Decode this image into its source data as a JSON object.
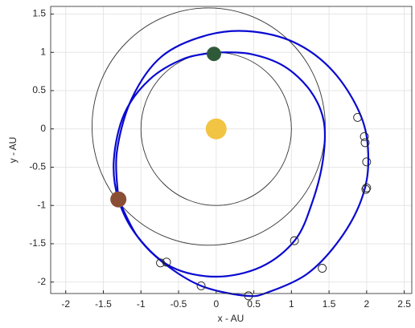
{
  "chart_data": {
    "type": "line",
    "xlabel": "x - AU",
    "ylabel": "y - AU",
    "xlim": [
      -2.2,
      2.6
    ],
    "ylim": [
      -2.15,
      1.6
    ],
    "xticks": [
      -2,
      -1.5,
      -1,
      -0.5,
      0,
      0.5,
      1,
      1.5,
      2,
      2.5
    ],
    "yticks": [
      -2,
      -1.5,
      -1,
      -0.5,
      0,
      0.5,
      1,
      1.5
    ],
    "grid": true,
    "orbits": [
      {
        "center": [
          0,
          0
        ],
        "radius": 1,
        "color": "#333333"
      },
      {
        "center": [
          -0.1,
          0.03
        ],
        "radius": 1.55,
        "color": "#333333"
      }
    ],
    "series": [
      {
        "color": "#0a0ad0",
        "x": [
          -1.3,
          -1.32,
          -1.12,
          -0.72,
          -0.1,
          0.5,
          1.1,
          1.6,
          1.95,
          2.02,
          1.9,
          1.6,
          1.2,
          0.7,
          0.4,
          -0.2,
          -0.7,
          -1.05,
          -1.3
        ],
        "y": [
          -0.92,
          -0.3,
          0.4,
          0.95,
          1.23,
          1.27,
          1.1,
          0.7,
          0.1,
          -0.5,
          -1.0,
          -1.5,
          -1.9,
          -2.13,
          -2.18,
          -2.05,
          -1.75,
          -1.4,
          -0.92
        ]
      },
      {
        "color": "#0a0ad0",
        "x": [
          0,
          0.45,
          0.9,
          1.25,
          1.43,
          1.42,
          1.28,
          1.05,
          0.6,
          0,
          -0.6,
          -1.05,
          -1.3,
          -1.36,
          -1.22,
          -0.88,
          -0.42,
          0
        ],
        "y": [
          1,
          0.98,
          0.82,
          0.5,
          0.1,
          -0.4,
          -0.95,
          -1.45,
          -1.8,
          -1.93,
          -1.8,
          -1.4,
          -0.92,
          -0.4,
          0.2,
          0.65,
          0.92,
          1
        ]
      }
    ],
    "markers": {
      "color": "#222222",
      "x": [
        1.88,
        1.97,
        1.98,
        2.0,
        2.0,
        1.99,
        1.41,
        1.04,
        0.43,
        -0.2,
        -0.66,
        -0.74
      ],
      "y": [
        0.15,
        -0.1,
        -0.18,
        -0.43,
        -0.77,
        -0.79,
        -1.82,
        -1.46,
        -2.18,
        -2.05,
        -1.74,
        -1.75
      ]
    },
    "bodies": [
      {
        "x": 0,
        "y": 0,
        "color": "#f2c443"
      },
      {
        "x": -0.03,
        "y": 0.98,
        "color": "#2f5a3a"
      },
      {
        "x": -1.3,
        "y": -0.92,
        "color": "#8a4e34"
      }
    ]
  }
}
